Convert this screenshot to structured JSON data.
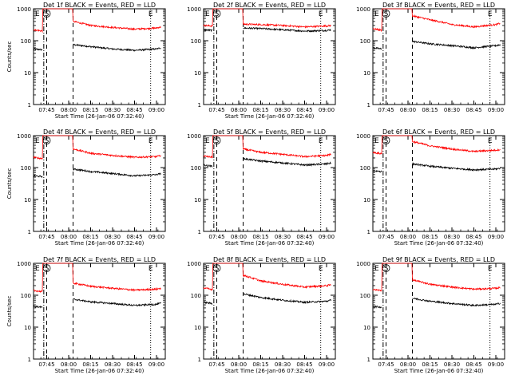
{
  "chart_data": [
    {
      "type": "line",
      "title": "Det 1f BLACK = Events, RED = LLD",
      "xlabel": "Start Time (26-Jan-06 07:32:40)",
      "ylabel": "Counts/sec",
      "yscale": "log",
      "ylim": [
        1,
        1000
      ],
      "x_ticks": [
        "07:45",
        "08:00",
        "08:15",
        "08:30",
        "08:45",
        "09:00"
      ],
      "y_ticks": [
        "1",
        "10",
        "100",
        "1000"
      ],
      "markers": [
        "S",
        "E"
      ],
      "series": [
        {
          "name": "Events",
          "color": "#000000",
          "x": [
            "07:36",
            "07:42",
            "08:03",
            "08:15",
            "08:30",
            "08:45",
            "09:00",
            "09:03"
          ],
          "values": [
            55,
            52,
            75,
            65,
            55,
            50,
            55,
            60
          ]
        },
        {
          "name": "LLD",
          "color": "#ff0000",
          "x": [
            "07:36",
            "07:42",
            "08:03",
            "08:15",
            "08:30",
            "08:45",
            "09:00",
            "09:03"
          ],
          "values": [
            220,
            200,
            400,
            300,
            260,
            230,
            250,
            270
          ]
        }
      ]
    },
    {
      "type": "line",
      "title": "Det 2f BLACK = Events, RED = LLD",
      "xlabel": "Start Time (26-Jan-06 07:32:40)",
      "ylabel": "",
      "yscale": "log",
      "ylim": [
        1,
        1000
      ],
      "x_ticks": [
        "07:45",
        "08:00",
        "08:15",
        "08:30",
        "08:45",
        "09:00"
      ],
      "y_ticks": [
        "1",
        "10",
        "100",
        "1000"
      ],
      "markers": [
        "S",
        "E"
      ],
      "series": [
        {
          "name": "Events",
          "color": "#000000",
          "x": [
            "07:36",
            "07:42",
            "08:03",
            "08:15",
            "08:30",
            "08:45",
            "09:00",
            "09:03"
          ],
          "values": [
            220,
            210,
            250,
            240,
            220,
            200,
            210,
            220
          ]
        },
        {
          "name": "LLD",
          "color": "#ff0000",
          "x": [
            "07:36",
            "07:42",
            "08:03",
            "08:15",
            "08:30",
            "08:45",
            "09:00",
            "09:03"
          ],
          "values": [
            300,
            290,
            330,
            320,
            300,
            270,
            290,
            300
          ]
        }
      ]
    },
    {
      "type": "line",
      "title": "Det 3f BLACK = Events, RED = LLD",
      "xlabel": "",
      "ylabel": "",
      "yscale": "log",
      "ylim": [
        1,
        1000
      ],
      "x_ticks": [
        "07:45",
        "08:00",
        "08:15",
        "08:30",
        "08:45",
        "09:00"
      ],
      "y_ticks": [
        "1",
        "10",
        "100",
        "1000"
      ],
      "markers": [
        "S",
        "E"
      ],
      "series": [
        {
          "name": "Events",
          "color": "#000000",
          "x": [
            "07:36",
            "07:42",
            "08:03",
            "08:15",
            "08:30",
            "08:45",
            "09:00",
            "09:03"
          ],
          "values": [
            60,
            55,
            95,
            80,
            70,
            60,
            70,
            75
          ]
        },
        {
          "name": "LLD",
          "color": "#ff0000",
          "x": [
            "07:36",
            "07:42",
            "08:03",
            "08:15",
            "08:30",
            "08:45",
            "09:00",
            "09:03"
          ],
          "values": [
            240,
            210,
            600,
            450,
            320,
            270,
            320,
            350
          ]
        }
      ]
    },
    {
      "type": "line",
      "title": "Det 4f BLACK = Events, RED = LLD",
      "xlabel": "Start Time (26-Jan-06 07:32:40)",
      "ylabel": "Counts/sec",
      "yscale": "log",
      "ylim": [
        1,
        1000
      ],
      "x_ticks": [
        "07:45",
        "08:00",
        "08:15",
        "08:30",
        "08:45",
        "09:00"
      ],
      "y_ticks": [
        "1",
        "10",
        "100",
        "1000"
      ],
      "markers": [
        "S",
        "E"
      ],
      "series": [
        {
          "name": "Events",
          "color": "#000000",
          "x": [
            "07:36",
            "07:42",
            "08:03",
            "08:15",
            "08:30",
            "08:45",
            "09:00",
            "09:03"
          ],
          "values": [
            55,
            52,
            90,
            75,
            65,
            55,
            60,
            65
          ]
        },
        {
          "name": "LLD",
          "color": "#ff0000",
          "x": [
            "07:36",
            "07:42",
            "08:03",
            "08:15",
            "08:30",
            "08:45",
            "09:00",
            "09:03"
          ],
          "values": [
            210,
            190,
            380,
            280,
            240,
            210,
            220,
            240
          ]
        }
      ]
    },
    {
      "type": "line",
      "title": "Det 5f BLACK = Events, RED = LLD",
      "xlabel": "Start Time (26-Jan-06 07:32:40)",
      "ylabel": "",
      "yscale": "log",
      "ylim": [
        1,
        1000
      ],
      "x_ticks": [
        "07:45",
        "08:00",
        "08:15",
        "08:30",
        "08:45",
        "09:00"
      ],
      "y_ticks": [
        "1",
        "10",
        "100",
        "1000"
      ],
      "markers": [
        "S",
        "E"
      ],
      "series": [
        {
          "name": "Events",
          "color": "#000000",
          "x": [
            "07:36",
            "07:42",
            "08:03",
            "08:15",
            "08:30",
            "08:45",
            "09:00",
            "09:03"
          ],
          "values": [
            120,
            110,
            190,
            160,
            140,
            120,
            130,
            140
          ]
        },
        {
          "name": "LLD",
          "color": "#ff0000",
          "x": [
            "07:36",
            "07:42",
            "08:03",
            "08:15",
            "08:30",
            "08:45",
            "09:00",
            "09:03"
          ],
          "values": [
            230,
            210,
            380,
            300,
            260,
            220,
            240,
            260
          ]
        }
      ]
    },
    {
      "type": "line",
      "title": "Det 6f BLACK = Events, RED = LLD",
      "xlabel": "Start Time (26-Jan-06 07:32:40)",
      "ylabel": "",
      "yscale": "log",
      "ylim": [
        1,
        1000
      ],
      "x_ticks": [
        "07:45",
        "08:00",
        "08:15",
        "08:30",
        "08:45",
        "09:00"
      ],
      "y_ticks": [
        "1",
        "10",
        "100",
        "1000"
      ],
      "markers": [
        "S",
        "E"
      ],
      "series": [
        {
          "name": "Events",
          "color": "#000000",
          "x": [
            "07:36",
            "07:42",
            "08:03",
            "08:15",
            "08:30",
            "08:45",
            "09:00",
            "09:03"
          ],
          "values": [
            80,
            75,
            130,
            110,
            95,
            85,
            90,
            95
          ]
        },
        {
          "name": "LLD",
          "color": "#ff0000",
          "x": [
            "07:36",
            "07:42",
            "08:03",
            "08:15",
            "08:30",
            "08:45",
            "09:00",
            "09:03"
          ],
          "values": [
            300,
            270,
            650,
            480,
            380,
            320,
            350,
            370
          ]
        }
      ]
    },
    {
      "type": "line",
      "title": "Det 7f BLACK = Events, RED = LLD",
      "xlabel": "Start Time (26-Jan-06 07:32:40)",
      "ylabel": "Counts/sec",
      "yscale": "log",
      "ylim": [
        1,
        1000
      ],
      "x_ticks": [
        "07:45",
        "08:00",
        "08:15",
        "08:30",
        "08:45",
        "09:00"
      ],
      "y_ticks": [
        "1",
        "10",
        "100",
        "1000"
      ],
      "markers": [
        "S",
        "E"
      ],
      "series": [
        {
          "name": "Events",
          "color": "#000000",
          "x": [
            "07:36",
            "07:42",
            "08:03",
            "08:15",
            "08:30",
            "08:45",
            "09:00",
            "09:03"
          ],
          "values": [
            45,
            42,
            75,
            62,
            55,
            48,
            52,
            56
          ]
        },
        {
          "name": "LLD",
          "color": "#ff0000",
          "x": [
            "07:36",
            "07:42",
            "08:03",
            "08:15",
            "08:30",
            "08:45",
            "09:00",
            "09:03"
          ],
          "values": [
            140,
            130,
            240,
            190,
            165,
            145,
            155,
            165
          ]
        }
      ]
    },
    {
      "type": "line",
      "title": "Det 8f BLACK = Events, RED = LLD",
      "xlabel": "Start Time (26-Jan-06 07:32:40)",
      "ylabel": "",
      "yscale": "log",
      "ylim": [
        1,
        1000
      ],
      "x_ticks": [
        "07:45",
        "08:00",
        "08:15",
        "08:30",
        "08:45",
        "09:00"
      ],
      "y_ticks": [
        "1",
        "10",
        "100",
        "1000"
      ],
      "markers": [
        "S",
        "E"
      ],
      "series": [
        {
          "name": "Events",
          "color": "#000000",
          "x": [
            "07:36",
            "07:42",
            "08:03",
            "08:15",
            "08:30",
            "08:45",
            "09:00",
            "09:03"
          ],
          "values": [
            60,
            55,
            110,
            85,
            70,
            60,
            65,
            70
          ]
        },
        {
          "name": "LLD",
          "color": "#ff0000",
          "x": [
            "07:36",
            "07:42",
            "08:03",
            "08:15",
            "08:30",
            "08:45",
            "09:00",
            "09:03"
          ],
          "values": [
            170,
            150,
            420,
            280,
            220,
            180,
            200,
            210
          ]
        }
      ]
    },
    {
      "type": "line",
      "title": "Det 9f BLACK = Events, RED = LLD",
      "xlabel": "Start Time (26-Jan-06 07:32:40)",
      "ylabel": "",
      "yscale": "log",
      "ylim": [
        1,
        1000
      ],
      "x_ticks": [
        "07:45",
        "08:00",
        "08:15",
        "08:30",
        "08:45",
        "09:00"
      ],
      "y_ticks": [
        "1",
        "10",
        "100",
        "1000"
      ],
      "markers": [
        "S",
        "E"
      ],
      "series": [
        {
          "name": "Events",
          "color": "#000000",
          "x": [
            "07:36",
            "07:42",
            "08:03",
            "08:15",
            "08:30",
            "08:45",
            "09:00",
            "09:03"
          ],
          "values": [
            45,
            42,
            80,
            65,
            55,
            48,
            52,
            56
          ]
        },
        {
          "name": "LLD",
          "color": "#ff0000",
          "x": [
            "07:36",
            "07:42",
            "08:03",
            "08:15",
            "08:30",
            "08:45",
            "09:00",
            "09:03"
          ],
          "values": [
            150,
            140,
            300,
            220,
            180,
            155,
            165,
            175
          ]
        }
      ]
    }
  ]
}
